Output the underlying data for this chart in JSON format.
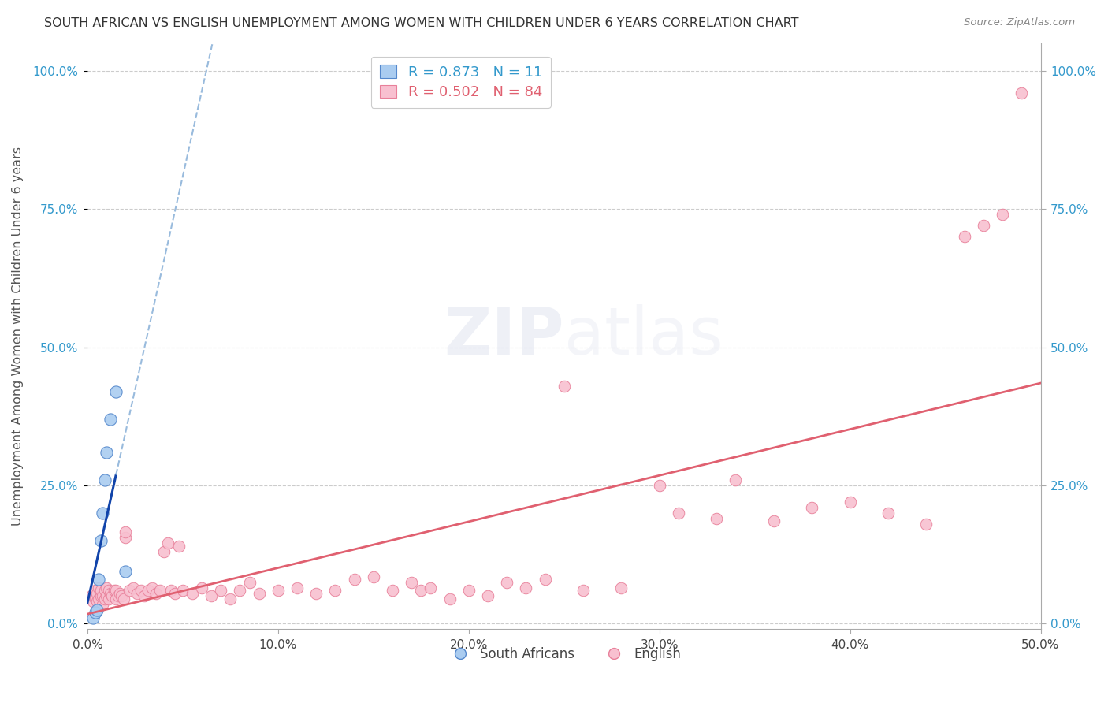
{
  "title": "SOUTH AFRICAN VS ENGLISH UNEMPLOYMENT AMONG WOMEN WITH CHILDREN UNDER 6 YEARS CORRELATION CHART",
  "source": "Source: ZipAtlas.com",
  "ylabel": "Unemployment Among Women with Children Under 6 years",
  "xlabel_ticks": [
    "0.0%",
    "10.0%",
    "20.0%",
    "30.0%",
    "40.0%",
    "50.0%"
  ],
  "xlabel_vals": [
    0.0,
    0.1,
    0.2,
    0.3,
    0.4,
    0.5
  ],
  "ylabel_ticks": [
    "0.0%",
    "25.0%",
    "50.0%",
    "75.0%",
    "100.0%"
  ],
  "ylabel_vals": [
    0.0,
    0.25,
    0.5,
    0.75,
    1.0
  ],
  "xlim": [
    0.0,
    0.5
  ],
  "ylim": [
    -0.01,
    1.05
  ],
  "sa_color": "#aaccf0",
  "sa_edge_color": "#5588cc",
  "en_color": "#f8c0d0",
  "en_edge_color": "#e8809a",
  "sa_line_color": "#1144aa",
  "en_line_color": "#e06070",
  "sa_dash_color": "#99bbdd",
  "legend_sa_R": "0.873",
  "legend_sa_N": "11",
  "legend_en_R": "0.502",
  "legend_en_N": "84",
  "sa_x": [
    0.003,
    0.004,
    0.005,
    0.006,
    0.007,
    0.008,
    0.009,
    0.01,
    0.012,
    0.015,
    0.02
  ],
  "sa_y": [
    0.01,
    0.02,
    0.025,
    0.08,
    0.15,
    0.2,
    0.26,
    0.31,
    0.37,
    0.42,
    0.095
  ],
  "en_x": [
    0.002,
    0.003,
    0.004,
    0.004,
    0.005,
    0.005,
    0.006,
    0.006,
    0.007,
    0.007,
    0.008,
    0.008,
    0.009,
    0.009,
    0.01,
    0.01,
    0.011,
    0.011,
    0.012,
    0.013,
    0.014,
    0.015,
    0.015,
    0.016,
    0.017,
    0.018,
    0.019,
    0.02,
    0.02,
    0.022,
    0.024,
    0.026,
    0.028,
    0.03,
    0.032,
    0.034,
    0.036,
    0.038,
    0.04,
    0.042,
    0.044,
    0.046,
    0.048,
    0.05,
    0.055,
    0.06,
    0.065,
    0.07,
    0.075,
    0.08,
    0.085,
    0.09,
    0.1,
    0.11,
    0.12,
    0.13,
    0.14,
    0.15,
    0.16,
    0.17,
    0.175,
    0.18,
    0.19,
    0.2,
    0.21,
    0.22,
    0.23,
    0.24,
    0.25,
    0.26,
    0.28,
    0.3,
    0.31,
    0.33,
    0.34,
    0.36,
    0.38,
    0.4,
    0.42,
    0.44,
    0.46,
    0.47,
    0.48,
    0.49
  ],
  "en_y": [
    0.05,
    0.04,
    0.045,
    0.06,
    0.04,
    0.055,
    0.045,
    0.065,
    0.05,
    0.06,
    0.035,
    0.05,
    0.045,
    0.06,
    0.05,
    0.065,
    0.045,
    0.06,
    0.055,
    0.05,
    0.06,
    0.045,
    0.06,
    0.05,
    0.055,
    0.05,
    0.045,
    0.155,
    0.165,
    0.06,
    0.065,
    0.055,
    0.06,
    0.05,
    0.06,
    0.065,
    0.055,
    0.06,
    0.13,
    0.145,
    0.06,
    0.055,
    0.14,
    0.06,
    0.055,
    0.065,
    0.05,
    0.06,
    0.045,
    0.06,
    0.075,
    0.055,
    0.06,
    0.065,
    0.055,
    0.06,
    0.08,
    0.085,
    0.06,
    0.075,
    0.06,
    0.065,
    0.045,
    0.06,
    0.05,
    0.075,
    0.065,
    0.08,
    0.43,
    0.06,
    0.065,
    0.25,
    0.2,
    0.19,
    0.26,
    0.185,
    0.21,
    0.22,
    0.2,
    0.18,
    0.7,
    0.72,
    0.74,
    0.96
  ]
}
